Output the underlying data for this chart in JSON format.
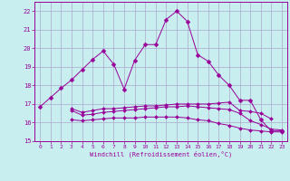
{
  "xlabel": "Windchill (Refroidissement éolien,°C)",
  "background_color": "#c8eef0",
  "grid_color": "#aaaacc",
  "line_color": "#990099",
  "xlim": [
    -0.5,
    23.5
  ],
  "ylim": [
    15,
    22.5
  ],
  "yticks": [
    15,
    16,
    17,
    18,
    19,
    20,
    21,
    22
  ],
  "xticks": [
    0,
    1,
    2,
    3,
    4,
    5,
    6,
    7,
    8,
    9,
    10,
    11,
    12,
    13,
    14,
    15,
    16,
    17,
    18,
    19,
    20,
    21,
    22,
    23
  ],
  "series": [
    {
      "x": [
        0,
        1,
        2,
        3,
        4,
        5,
        6,
        7,
        8,
        9,
        10,
        11,
        12,
        13,
        14,
        15,
        16,
        17,
        18,
        19,
        20,
        21,
        22,
        23
      ],
      "y": [
        16.85,
        17.35,
        17.85,
        18.3,
        18.85,
        19.4,
        19.85,
        19.15,
        17.8,
        19.35,
        20.2,
        20.2,
        21.55,
        22.0,
        21.45,
        19.65,
        19.3,
        18.55,
        18.0,
        17.2,
        17.2,
        16.15,
        15.55,
        15.55
      ]
    },
    {
      "x": [
        3,
        4,
        5,
        6,
        7,
        8,
        9,
        10,
        11,
        12,
        13,
        14,
        15,
        16,
        17,
        18,
        19,
        20,
        21,
        22
      ],
      "y": [
        16.75,
        16.55,
        16.65,
        16.75,
        16.75,
        16.8,
        16.85,
        16.9,
        16.9,
        16.95,
        17.0,
        17.0,
        17.0,
        17.0,
        17.05,
        17.1,
        16.65,
        16.6,
        16.5,
        16.2
      ]
    },
    {
      "x": [
        3,
        4,
        5,
        6,
        7,
        8,
        9,
        10,
        11,
        12,
        13,
        14,
        15,
        16,
        17,
        18,
        19,
        20,
        21,
        22,
        23
      ],
      "y": [
        16.65,
        16.4,
        16.45,
        16.55,
        16.6,
        16.65,
        16.7,
        16.75,
        16.8,
        16.85,
        16.85,
        16.9,
        16.85,
        16.8,
        16.75,
        16.7,
        16.5,
        16.1,
        15.9,
        15.65,
        15.6
      ]
    },
    {
      "x": [
        3,
        4,
        5,
        6,
        7,
        8,
        9,
        10,
        11,
        12,
        13,
        14,
        15,
        16,
        17,
        18,
        19,
        20,
        21,
        22,
        23
      ],
      "y": [
        16.15,
        16.1,
        16.15,
        16.2,
        16.25,
        16.25,
        16.25,
        16.3,
        16.3,
        16.3,
        16.3,
        16.25,
        16.15,
        16.1,
        15.95,
        15.85,
        15.7,
        15.6,
        15.55,
        15.5,
        15.5
      ]
    }
  ]
}
